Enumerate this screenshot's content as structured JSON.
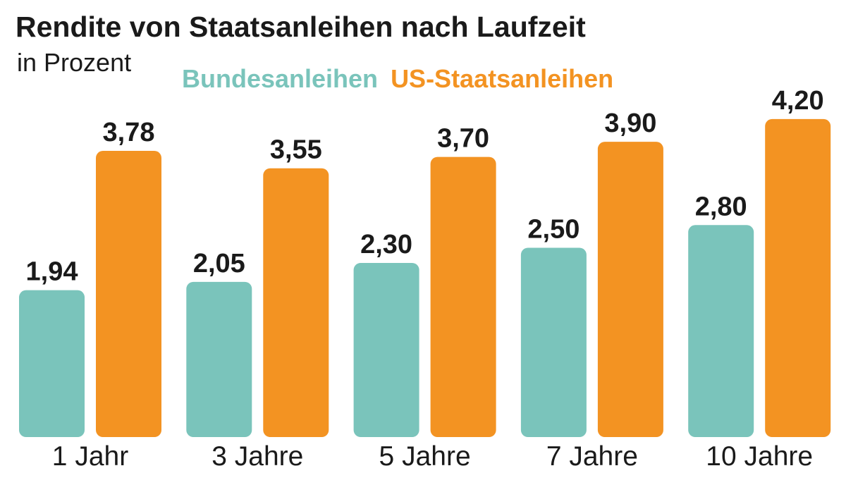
{
  "chart_data": {
    "type": "bar",
    "title": "Rendite von Staatsanleihen nach Laufzeit",
    "subtitle": "in Prozent",
    "categories": [
      "1 Jahr",
      "3 Jahre",
      "5 Jahre",
      "7 Jahre",
      "10 Jahre"
    ],
    "series": [
      {
        "name": "Bundesanleihen",
        "color": "#7ac4bb",
        "values": [
          1.94,
          2.05,
          2.3,
          2.5,
          2.8
        ],
        "value_labels": [
          "1,94",
          "2,05",
          "2,30",
          "2,50",
          "2,80"
        ]
      },
      {
        "name": "US-Staatsanleihen",
        "color": "#f39322",
        "values": [
          3.78,
          3.55,
          3.7,
          3.9,
          4.2
        ],
        "value_labels": [
          "3,78",
          "3,55",
          "3,70",
          "3,90",
          "4,20"
        ]
      }
    ]
  }
}
